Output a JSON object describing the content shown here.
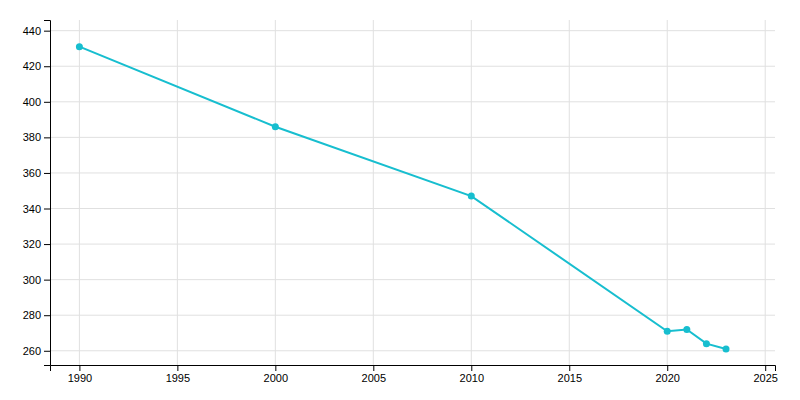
{
  "chart_data": {
    "type": "line",
    "x": [
      1990,
      2000,
      2010,
      2020,
      2021,
      2022,
      2023
    ],
    "values": [
      431,
      386,
      347,
      271,
      272,
      264,
      261
    ],
    "color": "#17BECF",
    "marker": "circle",
    "xlim": [
      1988.5,
      2025.5
    ],
    "ylim": [
      252,
      446
    ],
    "xticks": [
      1990,
      1995,
      2000,
      2005,
      2010,
      2015,
      2020,
      2025
    ],
    "yticks": [
      260,
      280,
      300,
      320,
      340,
      360,
      380,
      400,
      420,
      440
    ],
    "grid": true
  }
}
